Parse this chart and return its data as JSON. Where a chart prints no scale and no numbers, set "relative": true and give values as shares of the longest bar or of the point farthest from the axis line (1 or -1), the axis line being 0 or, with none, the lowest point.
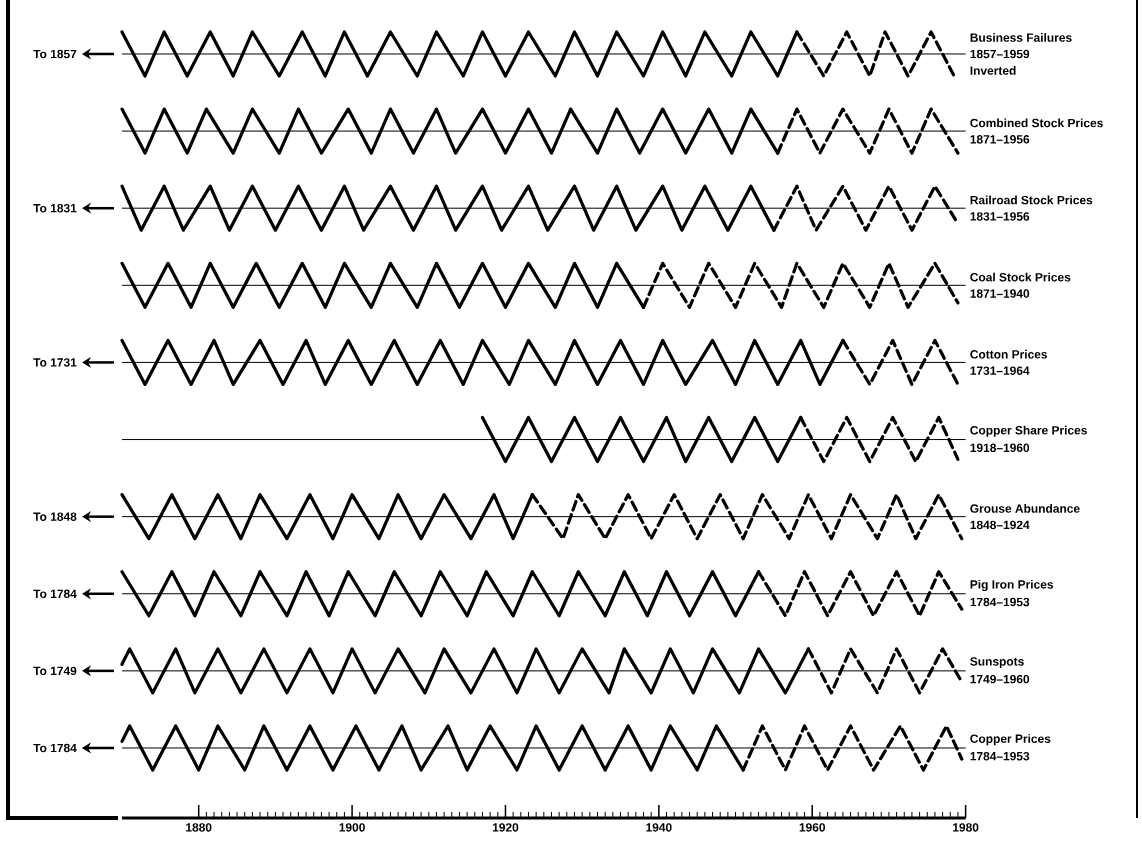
{
  "chart_data": [
    {
      "type": "line",
      "relative": true,
      "xlim": [
        1870,
        1980
      ],
      "tick_labels": false,
      "series": [
        {
          "color": "#000000",
          "line_style": "solid",
          "x": [
            1870,
            1873,
            1875.5,
            1878.5,
            1881.5,
            1884.5,
            1887,
            1890.5,
            1893.5,
            1896.5,
            1899,
            1902,
            1905,
            1908.5,
            1911,
            1914.5,
            1917,
            1920,
            1923,
            1926.5,
            1929,
            1932,
            1934.5,
            1938,
            1940.5,
            1943.5,
            1946,
            1949.5,
            1952,
            1955.5,
            1958
          ],
          "values": [
            1,
            -1,
            1,
            -1,
            1,
            -1,
            1,
            -1,
            1,
            -1,
            1,
            -1,
            1,
            -1,
            1,
            -1,
            1,
            -1,
            1,
            -1,
            1,
            -1,
            1,
            -1,
            1,
            -1,
            1,
            -1,
            1,
            -1,
            1
          ]
        },
        {
          "color": "#000000",
          "line_style": "dashed",
          "x": [
            1958,
            1961.5,
            1964.5,
            1967.5,
            1969.5,
            1972.5,
            1975.5,
            1978.5
          ],
          "values": [
            1,
            -1,
            1,
            -1,
            1,
            -1,
            1,
            -1
          ]
        }
      ],
      "ylabel": "To 1857",
      "annotations": [
        "Business Failures",
        "1857–1959",
        "Inverted"
      ]
    },
    {
      "type": "line",
      "relative": true,
      "xlim": [
        1870,
        1980
      ],
      "tick_labels": false,
      "series": [
        {
          "color": "#000000",
          "line_style": "solid",
          "x": [
            1870,
            1873,
            1875.5,
            1878.5,
            1881,
            1884.5,
            1887,
            1890.5,
            1893,
            1896,
            1899.5,
            1902.5,
            1905,
            1908,
            1911,
            1913.5,
            1917,
            1920,
            1923,
            1926,
            1928.5,
            1932,
            1934.5,
            1937.5,
            1940.5,
            1943.5,
            1946.5,
            1949.5,
            1952,
            1955.5
          ],
          "values": [
            1,
            -1,
            1,
            -1,
            1,
            -1,
            1,
            -1,
            1,
            -1,
            1,
            -1,
            1,
            -1,
            1,
            -1,
            1,
            -1,
            1,
            -1,
            1,
            -1,
            1,
            -1,
            1,
            -1,
            1,
            -1,
            1,
            -1
          ]
        },
        {
          "color": "#000000",
          "line_style": "dashed",
          "x": [
            1955.5,
            1958,
            1961,
            1964,
            1967.5,
            1970,
            1973,
            1975.5,
            1979
          ],
          "values": [
            -1,
            1,
            -1,
            1,
            -1,
            1,
            -1,
            1,
            -1
          ]
        }
      ],
      "annotations": [
        "Combined Stock Prices",
        "1871–1956"
      ]
    },
    {
      "type": "line",
      "relative": true,
      "xlim": [
        1870,
        1980
      ],
      "tick_labels": false,
      "series": [
        {
          "color": "#000000",
          "line_style": "solid",
          "x": [
            1870,
            1872.5,
            1875.5,
            1878,
            1881.5,
            1884,
            1887,
            1890,
            1893,
            1896,
            1899,
            1901.5,
            1905,
            1908,
            1911,
            1913.5,
            1917,
            1919.5,
            1923,
            1925.5,
            1929,
            1931.5,
            1934.5,
            1937,
            1940.5,
            1943,
            1946,
            1949,
            1952,
            1955
          ],
          "values": [
            1,
            -1,
            1,
            -1,
            1,
            -1,
            1,
            -1,
            1,
            -1,
            1,
            -1,
            1,
            -1,
            1,
            -1,
            1,
            -1,
            1,
            -1,
            1,
            -1,
            1,
            -1,
            1,
            -1,
            1,
            -1,
            1,
            -1
          ]
        },
        {
          "color": "#000000",
          "line_style": "dashed",
          "x": [
            1955,
            1958,
            1960.5,
            1964,
            1967,
            1970,
            1973,
            1976,
            1979
          ],
          "values": [
            -1,
            1,
            -1,
            1,
            -1,
            1,
            -1,
            1,
            -0.7
          ]
        }
      ],
      "ylabel": "To 1831",
      "annotations": [
        "Railroad Stock Prices",
        "1831–1956"
      ]
    },
    {
      "type": "line",
      "relative": true,
      "xlim": [
        1870,
        1980
      ],
      "tick_labels": false,
      "series": [
        {
          "color": "#000000",
          "line_style": "solid",
          "x": [
            1870,
            1873,
            1876,
            1879,
            1881.5,
            1884.5,
            1887.5,
            1890.5,
            1893.5,
            1896.5,
            1899,
            1902.5,
            1905,
            1908.5,
            1911,
            1914,
            1917,
            1920,
            1923,
            1926.5,
            1929,
            1932,
            1934.5,
            1938
          ],
          "values": [
            1,
            -1,
            1,
            -1,
            1,
            -1,
            1,
            -1,
            1,
            -1,
            1,
            -1,
            1,
            -1,
            1,
            -1,
            1,
            -1,
            1,
            -1,
            1,
            -1,
            1,
            -1
          ]
        },
        {
          "color": "#000000",
          "line_style": "dashed",
          "x": [
            1938,
            1940.5,
            1944,
            1946.5,
            1950,
            1952.5,
            1956,
            1958,
            1961.5,
            1964,
            1967.5,
            1970,
            1972.5,
            1976,
            1979
          ],
          "values": [
            -1,
            1,
            -1,
            1,
            -1,
            1,
            -1,
            1,
            -1,
            1,
            -1,
            1,
            -1,
            1,
            -0.8
          ]
        }
      ],
      "annotations": [
        "Coal Stock Prices",
        "1871–1940"
      ]
    },
    {
      "type": "line",
      "relative": true,
      "xlim": [
        1870,
        1980
      ],
      "tick_labels": false,
      "series": [
        {
          "color": "#000000",
          "line_style": "solid",
          "x": [
            1870,
            1873,
            1876,
            1879,
            1882,
            1884.5,
            1888,
            1891,
            1894,
            1896.5,
            1899.5,
            1902.5,
            1905.5,
            1908.5,
            1911.5,
            1914.5,
            1917,
            1920.5,
            1923,
            1926.5,
            1929,
            1932,
            1935,
            1938,
            1940.5,
            1943.5,
            1947,
            1950,
            1952.5,
            1955.5,
            1958.5,
            1961,
            1964
          ],
          "values": [
            1,
            -1,
            1,
            -1,
            1,
            -1,
            1,
            -1,
            1,
            -1,
            1,
            -1,
            1,
            -1,
            1,
            -1,
            1,
            -1,
            1,
            -1,
            1,
            -1,
            1,
            -1,
            1,
            -1,
            1,
            -1,
            1,
            -1,
            1,
            -1,
            1
          ]
        },
        {
          "color": "#000000",
          "line_style": "dashed",
          "x": [
            1964,
            1967.5,
            1970.5,
            1973,
            1976,
            1979
          ],
          "values": [
            1,
            -1,
            1,
            -1,
            1,
            -1
          ]
        }
      ],
      "ylabel": "To 1731",
      "annotations": [
        "Cotton Prices",
        "1731–1964"
      ]
    },
    {
      "type": "line",
      "relative": true,
      "xlim": [
        1870,
        1980
      ],
      "tick_labels": false,
      "series": [
        {
          "color": "#000000",
          "line_style": "solid",
          "x": [
            1917,
            1920,
            1923,
            1926,
            1929,
            1932,
            1935,
            1938,
            1941,
            1943.5,
            1946.5,
            1949.5,
            1952.5,
            1955.5,
            1958.5
          ],
          "values": [
            1,
            -1,
            1,
            -1,
            1,
            -1,
            1,
            -1,
            1,
            -1,
            1,
            -1,
            1,
            -1,
            1
          ]
        },
        {
          "color": "#000000",
          "line_style": "dashed",
          "x": [
            1958.5,
            1961.5,
            1964.5,
            1967.5,
            1970.5,
            1973.5,
            1976.5,
            1979
          ],
          "values": [
            1,
            -1,
            1,
            -1,
            1,
            -1,
            1,
            -0.9
          ]
        }
      ],
      "annotations": [
        "Copper Share Prices",
        "1918–1960"
      ]
    },
    {
      "type": "line",
      "relative": true,
      "xlim": [
        1870,
        1980
      ],
      "tick_labels": false,
      "series": [
        {
          "color": "#000000",
          "line_style": "solid",
          "x": [
            1870,
            1873.5,
            1876.5,
            1879.5,
            1882.5,
            1885.5,
            1888,
            1891.5,
            1894.5,
            1897.5,
            1900,
            1903.5,
            1906,
            1909,
            1912,
            1915.5,
            1918.5,
            1921,
            1923.5
          ],
          "values": [
            1,
            -1,
            1,
            -1,
            1,
            -1,
            1,
            -1,
            1,
            -1,
            1,
            -1,
            1,
            -1,
            1,
            -1,
            1,
            -1,
            1
          ]
        },
        {
          "color": "#000000",
          "line_style": "dashed",
          "x": [
            1923.5,
            1927.5,
            1929.5,
            1933,
            1936,
            1939,
            1942,
            1945,
            1948,
            1951,
            1953.5,
            1957,
            1959.5,
            1962.5,
            1965,
            1968.5,
            1971,
            1973.5,
            1976.5,
            1979.5
          ],
          "values": [
            1,
            -1,
            1,
            -1,
            1,
            -1,
            1,
            -1,
            1,
            -1,
            1,
            -1,
            1,
            -1,
            1,
            -1,
            1,
            -1,
            1,
            -1
          ]
        }
      ],
      "ylabel": "To 1848",
      "annotations": [
        "Grouse Abundance",
        "1848–1924"
      ]
    },
    {
      "type": "line",
      "relative": true,
      "xlim": [
        1870,
        1980
      ],
      "tick_labels": false,
      "series": [
        {
          "color": "#000000",
          "line_style": "solid",
          "x": [
            1870,
            1873.5,
            1876.5,
            1879.5,
            1882,
            1885.5,
            1888,
            1891.5,
            1894,
            1897,
            1899.5,
            1903,
            1905.5,
            1909,
            1911.5,
            1915,
            1917.5,
            1921,
            1923.5,
            1927,
            1929.5,
            1933,
            1935.5,
            1938.5,
            1941,
            1944,
            1947,
            1950,
            1953
          ],
          "values": [
            1,
            -1,
            1,
            -1,
            1,
            -1,
            1,
            -1,
            1,
            -1,
            1,
            -1,
            1,
            -1,
            1,
            -1,
            1,
            -1,
            1,
            -1,
            1,
            -1,
            1,
            -1,
            1,
            -1,
            1,
            -1,
            1
          ]
        },
        {
          "color": "#000000",
          "line_style": "dashed",
          "x": [
            1953,
            1956.5,
            1959,
            1962,
            1965,
            1968,
            1971,
            1974,
            1976.5,
            1979.5
          ],
          "values": [
            1,
            -1,
            1,
            -1,
            1,
            -1,
            1,
            -1,
            1,
            -0.7
          ]
        }
      ],
      "ylabel": "To 1784",
      "annotations": [
        "Pig Iron Prices",
        "1784–1953"
      ]
    },
    {
      "type": "line",
      "relative": true,
      "xlim": [
        1870,
        1980
      ],
      "tick_labels": false,
      "series": [
        {
          "color": "#000000",
          "line_style": "solid",
          "x": [
            1870,
            1871,
            1874,
            1877,
            1879.5,
            1882.5,
            1885.5,
            1888.5,
            1891.5,
            1894.5,
            1897.5,
            1900,
            1903,
            1906,
            1909.5,
            1912,
            1915.5,
            1918.5,
            1921.5,
            1924,
            1927,
            1930,
            1933.5,
            1935.5,
            1939,
            1941.5,
            1944.5,
            1947,
            1950.5,
            1953,
            1956.5,
            1959.5
          ],
          "values": [
            0.3,
            1,
            -1,
            1,
            -1,
            1,
            -1,
            1,
            -1,
            1,
            -1,
            1,
            -1,
            1,
            -1,
            1,
            -1,
            1,
            -1,
            1,
            -1,
            1,
            -1,
            1,
            -1,
            1,
            -1,
            1,
            -1,
            1,
            -1,
            1
          ]
        },
        {
          "color": "#000000",
          "line_style": "dashed",
          "x": [
            1959.5,
            1962.5,
            1965,
            1968.5,
            1971,
            1974,
            1977,
            1979.5
          ],
          "values": [
            1,
            -1,
            1,
            -1,
            1,
            -1,
            1,
            -0.5
          ]
        }
      ],
      "ylabel": "To 1749",
      "annotations": [
        "Sunspots",
        "1749–1960"
      ]
    },
    {
      "type": "line",
      "relative": true,
      "xlim": [
        1870,
        1980
      ],
      "tick_labels": "x",
      "xticks": [
        1880,
        1900,
        1920,
        1940,
        1960,
        1980
      ],
      "series": [
        {
          "color": "#000000",
          "line_style": "solid",
          "x": [
            1870,
            1871,
            1874,
            1877,
            1880,
            1882.5,
            1886,
            1888.5,
            1891.5,
            1894.5,
            1897.5,
            1900.5,
            1903.5,
            1906.5,
            1909,
            1912.5,
            1915,
            1918,
            1921.5,
            1924,
            1927,
            1930,
            1933,
            1936,
            1939,
            1941.5,
            1945,
            1947.5,
            1951
          ],
          "values": [
            0.3,
            1,
            -1,
            1,
            -1,
            1,
            -1,
            1,
            -1,
            1,
            -1,
            1,
            -1,
            1,
            -1,
            1,
            -1,
            1,
            -1,
            1,
            -1,
            1,
            -1,
            1,
            -1,
            1,
            -1,
            1,
            -1
          ]
        },
        {
          "color": "#000000",
          "line_style": "dashed",
          "x": [
            1951,
            1953.5,
            1956.5,
            1959,
            1962,
            1965,
            1968,
            1971.5,
            1974.5,
            1977.5,
            1979.5
          ],
          "values": [
            -1,
            1,
            -1,
            1,
            -1,
            1,
            -1,
            1,
            -1,
            1,
            -0.5
          ]
        }
      ],
      "ylabel": "To 1784",
      "annotations": [
        "Copper Prices",
        "1784–1953"
      ]
    }
  ]
}
